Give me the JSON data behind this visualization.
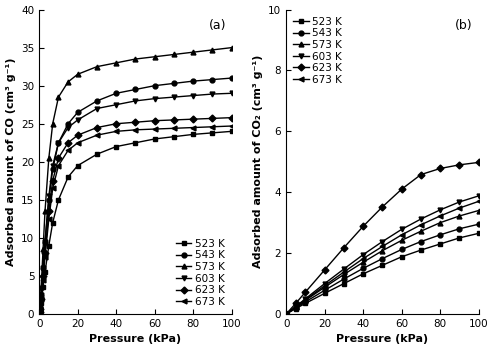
{
  "panel_a": {
    "title": "(a)",
    "xlabel": "Pressure (kPa)",
    "ylabel": "Adsorbed amount of CO (cm³ g⁻¹)",
    "xlim": [
      0,
      100
    ],
    "ylim": [
      0,
      40
    ],
    "yticks": [
      0,
      5,
      10,
      15,
      20,
      25,
      30,
      35,
      40
    ],
    "xticks": [
      0,
      20,
      40,
      60,
      80,
      100
    ],
    "series": [
      {
        "label": "523 K",
        "marker": "s",
        "pressures": [
          0.3,
          0.5,
          1.0,
          2.0,
          3.0,
          5.0,
          7.0,
          10.0,
          15.0,
          20.0,
          30.0,
          40.0,
          50.0,
          60.0,
          70.0,
          80.0,
          90.0,
          100.0
        ],
        "values": [
          0.3,
          0.6,
          1.5,
          3.5,
          5.5,
          9.0,
          12.0,
          15.0,
          18.0,
          19.5,
          21.0,
          22.0,
          22.5,
          23.0,
          23.3,
          23.6,
          23.8,
          24.0
        ]
      },
      {
        "label": "543 K",
        "marker": "o",
        "pressures": [
          0.3,
          0.5,
          1.0,
          2.0,
          3.0,
          5.0,
          7.0,
          10.0,
          15.0,
          20.0,
          30.0,
          40.0,
          50.0,
          60.0,
          70.0,
          80.0,
          90.0,
          100.0
        ],
        "values": [
          0.4,
          0.8,
          2.5,
          6.0,
          9.5,
          15.0,
          19.0,
          22.5,
          25.0,
          26.5,
          28.0,
          29.0,
          29.5,
          30.0,
          30.3,
          30.6,
          30.8,
          31.0
        ]
      },
      {
        "label": "573 K",
        "marker": "^",
        "pressures": [
          0.3,
          0.5,
          1.0,
          2.0,
          3.0,
          5.0,
          7.0,
          10.0,
          15.0,
          20.0,
          30.0,
          40.0,
          50.0,
          60.0,
          70.0,
          80.0,
          90.0,
          100.0
        ],
        "values": [
          0.5,
          1.0,
          3.5,
          8.5,
          13.5,
          20.5,
          25.0,
          28.5,
          30.5,
          31.5,
          32.5,
          33.0,
          33.5,
          33.8,
          34.1,
          34.4,
          34.7,
          35.0
        ]
      },
      {
        "label": "603 K",
        "marker": "v",
        "pressures": [
          0.3,
          0.5,
          1.0,
          2.0,
          3.0,
          5.0,
          7.0,
          10.0,
          15.0,
          20.0,
          30.0,
          40.0,
          50.0,
          60.0,
          70.0,
          80.0,
          90.0,
          100.0
        ],
        "values": [
          0.4,
          0.8,
          2.5,
          6.0,
          9.5,
          15.5,
          19.5,
          22.5,
          24.5,
          25.5,
          27.0,
          27.5,
          28.0,
          28.3,
          28.5,
          28.7,
          28.9,
          29.0
        ]
      },
      {
        "label": "623 K",
        "marker": "D",
        "pressures": [
          0.3,
          0.5,
          1.0,
          2.0,
          3.0,
          5.0,
          7.0,
          10.0,
          15.0,
          20.0,
          30.0,
          40.0,
          50.0,
          60.0,
          70.0,
          80.0,
          90.0,
          100.0
        ],
        "values": [
          0.3,
          0.6,
          2.0,
          5.0,
          8.0,
          13.5,
          17.5,
          20.5,
          22.5,
          23.5,
          24.5,
          25.0,
          25.2,
          25.4,
          25.5,
          25.6,
          25.7,
          25.8
        ]
      },
      {
        "label": "673 K",
        "marker": "<",
        "pressures": [
          0.3,
          0.5,
          1.0,
          2.0,
          3.0,
          5.0,
          7.0,
          10.0,
          15.0,
          20.0,
          30.0,
          40.0,
          50.0,
          60.0,
          70.0,
          80.0,
          90.0,
          100.0
        ],
        "values": [
          0.3,
          0.6,
          2.0,
          4.5,
          7.5,
          12.5,
          16.5,
          19.5,
          21.5,
          22.5,
          23.5,
          24.0,
          24.2,
          24.3,
          24.4,
          24.5,
          24.6,
          24.7
        ]
      }
    ]
  },
  "panel_b": {
    "title": "(b)",
    "xlabel": "Pressure (kPa)",
    "ylabel": "Adsorbed amount of CO₂ (cm³ g⁻¹)",
    "xlim": [
      0,
      100
    ],
    "ylim": [
      0,
      10
    ],
    "yticks": [
      0,
      2,
      4,
      6,
      8,
      10
    ],
    "xticks": [
      0,
      20,
      40,
      60,
      80,
      100
    ],
    "series": [
      {
        "label": "523 K",
        "marker": "s",
        "pressures": [
          0.0,
          5.0,
          10.0,
          20.0,
          30.0,
          40.0,
          50.0,
          60.0,
          70.0,
          80.0,
          90.0,
          100.0
        ],
        "values": [
          0.0,
          0.18,
          0.35,
          0.68,
          1.0,
          1.32,
          1.6,
          1.88,
          2.1,
          2.3,
          2.5,
          2.65
        ]
      },
      {
        "label": "543 K",
        "marker": "o",
        "pressures": [
          0.0,
          5.0,
          10.0,
          20.0,
          30.0,
          40.0,
          50.0,
          60.0,
          70.0,
          80.0,
          90.0,
          100.0
        ],
        "values": [
          0.0,
          0.2,
          0.4,
          0.78,
          1.15,
          1.5,
          1.82,
          2.12,
          2.38,
          2.6,
          2.8,
          2.95
        ]
      },
      {
        "label": "573 K",
        "marker": "^",
        "pressures": [
          0.0,
          5.0,
          10.0,
          20.0,
          30.0,
          40.0,
          50.0,
          60.0,
          70.0,
          80.0,
          90.0,
          100.0
        ],
        "values": [
          0.0,
          0.22,
          0.45,
          0.88,
          1.3,
          1.7,
          2.08,
          2.42,
          2.72,
          3.0,
          3.22,
          3.4
        ]
      },
      {
        "label": "603 K",
        "marker": "v",
        "pressures": [
          0.0,
          5.0,
          10.0,
          20.0,
          30.0,
          40.0,
          50.0,
          60.0,
          70.0,
          80.0,
          90.0,
          100.0
        ],
        "values": [
          0.0,
          0.25,
          0.5,
          1.0,
          1.48,
          1.95,
          2.38,
          2.78,
          3.12,
          3.42,
          3.68,
          3.88
        ]
      },
      {
        "label": "623 K",
        "marker": "D",
        "pressures": [
          0.0,
          5.0,
          10.0,
          20.0,
          30.0,
          40.0,
          50.0,
          60.0,
          70.0,
          80.0,
          90.0,
          100.0
        ],
        "values": [
          0.0,
          0.35,
          0.72,
          1.45,
          2.18,
          2.88,
          3.52,
          4.1,
          4.58,
          4.78,
          4.9,
          4.98
        ]
      },
      {
        "label": "673 K",
        "marker": "<",
        "pressures": [
          0.0,
          5.0,
          10.0,
          20.0,
          30.0,
          40.0,
          50.0,
          60.0,
          70.0,
          80.0,
          90.0,
          100.0
        ],
        "values": [
          0.0,
          0.23,
          0.47,
          0.93,
          1.38,
          1.82,
          2.22,
          2.6,
          2.93,
          3.22,
          3.48,
          3.7
        ]
      }
    ]
  },
  "color": "#000000",
  "markersize": 3.5,
  "linewidth": 1.0,
  "fontsize_label": 8,
  "fontsize_tick": 7.5,
  "fontsize_legend": 7.5,
  "fontsize_title": 9
}
